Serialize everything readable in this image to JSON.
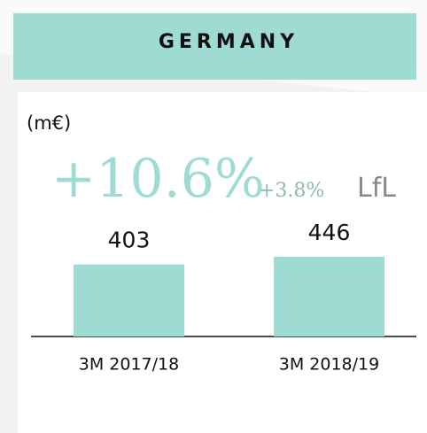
{
  "chart_data": {
    "type": "bar",
    "title": "GERMANY",
    "unit": "(m€)",
    "annotations": [
      "+10.6%",
      "+3.8%",
      "LfL"
    ],
    "categories": [
      "3M 2017/18",
      "3M 2018/19"
    ],
    "values": [
      403,
      446
    ],
    "color": "#9edcd3"
  }
}
